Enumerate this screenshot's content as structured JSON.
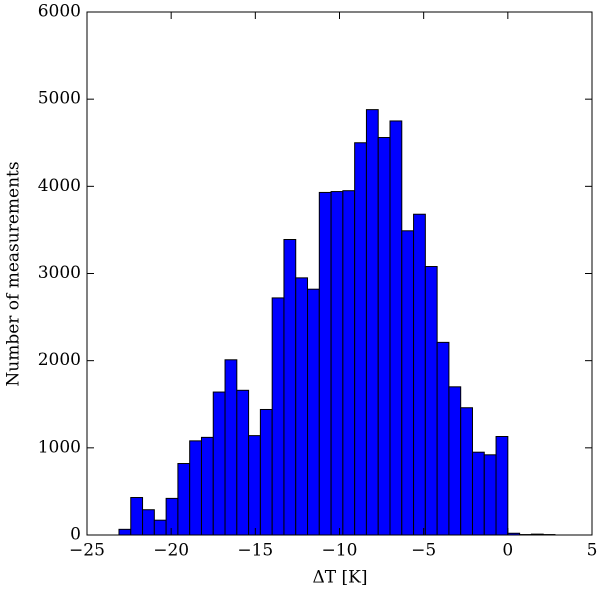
{
  "chart_data": {
    "type": "histogram",
    "xlabel": "ΔT [K]",
    "ylabel": "Number of measurements",
    "bins": [
      -23.1,
      -22.4,
      -21.7,
      -21.0,
      -20.3,
      -19.6,
      -18.9,
      -18.2,
      -17.5,
      -16.8,
      -16.1,
      -15.4,
      -14.7,
      -14.0,
      -13.3,
      -12.6,
      -11.9,
      -11.2,
      -10.5,
      -9.8,
      -9.1,
      -8.4,
      -7.7,
      -7.0,
      -6.3,
      -5.6,
      -4.9,
      -4.2,
      -3.5,
      -2.8,
      -2.1,
      -1.4,
      -0.7,
      0.0,
      0.7,
      1.4,
      2.1,
      2.8
    ],
    "values": [
      65,
      430,
      290,
      170,
      420,
      820,
      1080,
      1120,
      1640,
      2010,
      1660,
      1140,
      1440,
      2720,
      3390,
      2950,
      2820,
      3930,
      3940,
      3950,
      4500,
      4880,
      4560,
      4750,
      3490,
      3680,
      3080,
      2210,
      1700,
      1460,
      950,
      920,
      1130,
      20,
      5,
      10,
      5
    ],
    "color": "#0000ff",
    "xlim": [
      -25,
      5
    ],
    "xticks": [
      {
        "value": -25,
        "label": "−25"
      },
      {
        "value": -20,
        "label": "−20"
      },
      {
        "value": -15,
        "label": "−15"
      },
      {
        "value": -10,
        "label": "−10"
      },
      {
        "value": -5,
        "label": "−5"
      },
      0,
      5
    ],
    "ylim": [
      0,
      6000
    ],
    "yticks": [
      0,
      1000,
      2000,
      3000,
      4000,
      5000,
      6000
    ],
    "grid": false
  }
}
